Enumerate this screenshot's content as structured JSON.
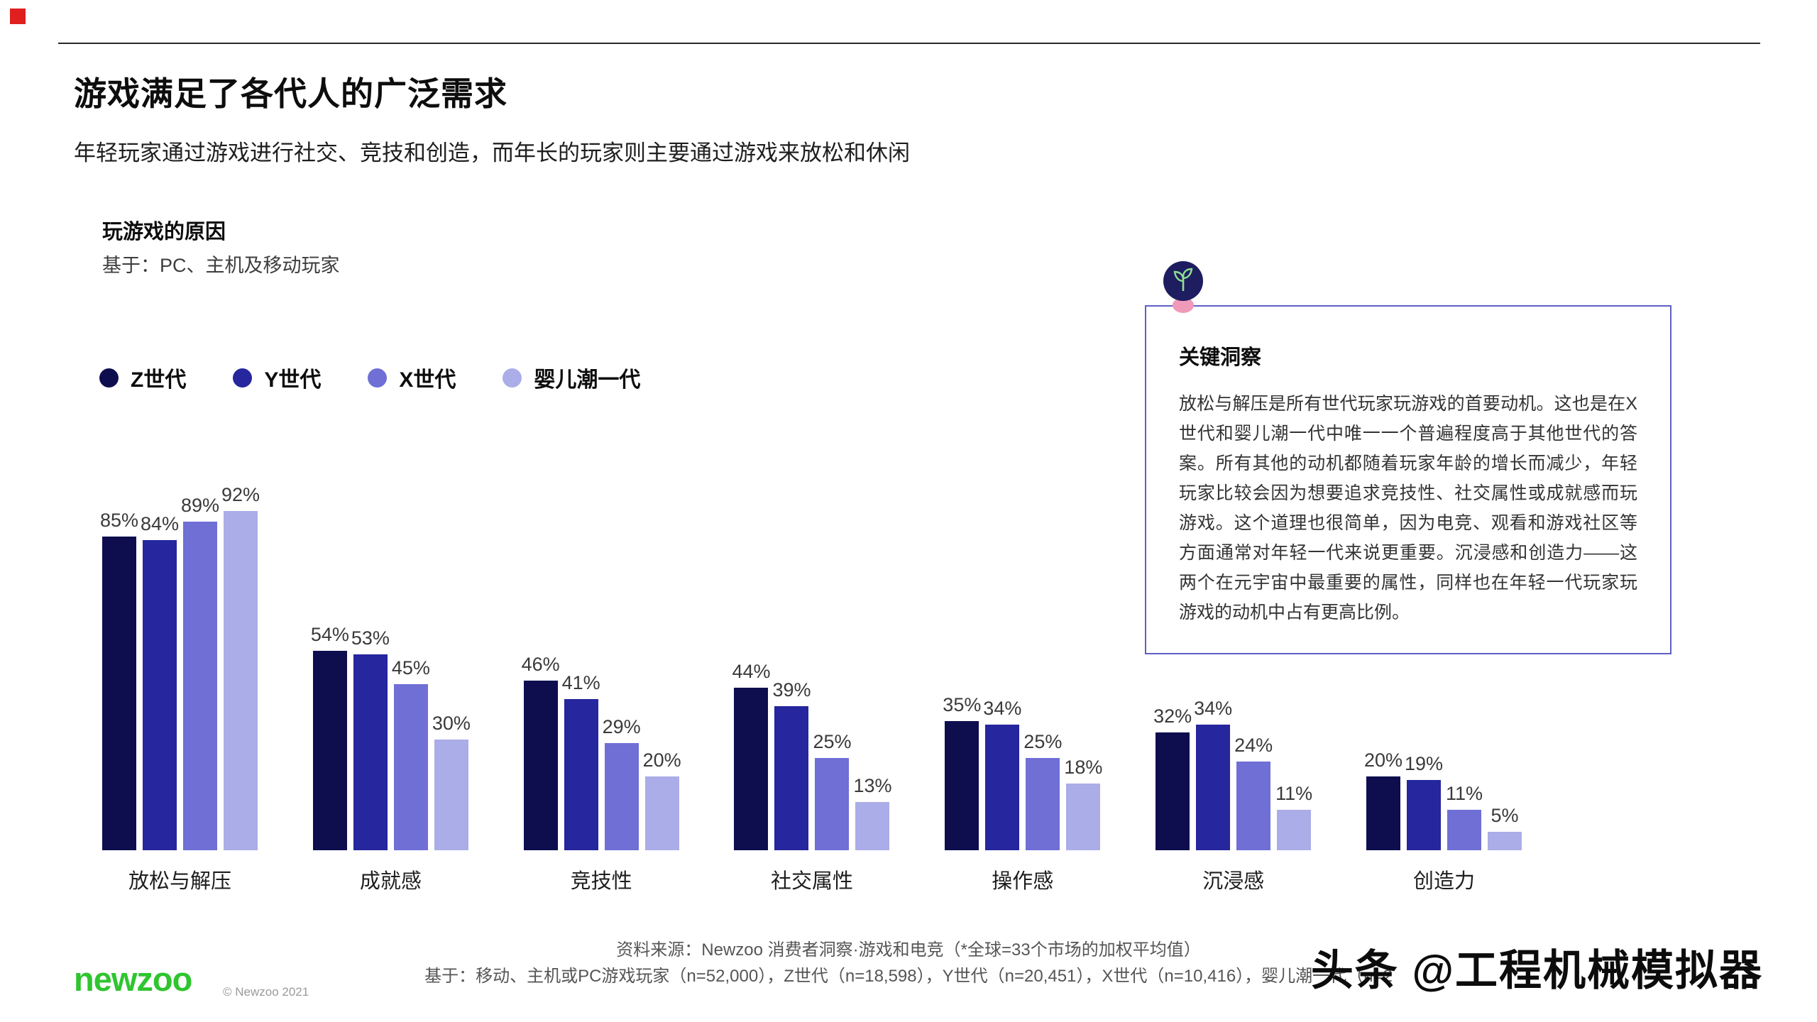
{
  "slide": {
    "title": "游戏满足了各代人的广泛需求",
    "subtitle": "年轻玩家通过游戏进行社交、竞技和创造，而年长的玩家则主要通过游戏来放松和休闲"
  },
  "chart": {
    "title": "玩游戏的原因",
    "basis": "基于：PC、主机及移动玩家"
  },
  "chart_data": {
    "type": "bar",
    "title": "玩游戏的原因",
    "subtitle": "基于：PC、主机及移动玩家",
    "categories": [
      "放松与解压",
      "成就感",
      "竞技性",
      "社交属性",
      "操作感",
      "沉浸感",
      "创造力"
    ],
    "series": [
      {
        "name": "Z世代",
        "color": "#0e0e4f",
        "values": [
          85,
          54,
          46,
          44,
          35,
          32,
          20
        ]
      },
      {
        "name": "Y世代",
        "color": "#26269e",
        "values": [
          84,
          53,
          41,
          39,
          34,
          34,
          19
        ]
      },
      {
        "name": "X世代",
        "color": "#6f6fd6",
        "values": [
          89,
          45,
          29,
          25,
          25,
          24,
          11
        ]
      },
      {
        "name": "婴儿潮一代",
        "color": "#abade8",
        "values": [
          92,
          30,
          20,
          13,
          18,
          11,
          5
        ]
      }
    ],
    "value_suffix": "%",
    "ylim": [
      0,
      100
    ],
    "grid": false,
    "legend_position": "top-left",
    "value_labels": true
  },
  "insight": {
    "icon": "lightbulb-icon",
    "title": "关键洞察",
    "body": "放松与解压是所有世代玩家玩游戏的首要动机。这也是在X世代和婴儿潮一代中唯一一个普遍程度高于其他世代的答案。所有其他的动机都随着玩家年龄的增长而减少，年轻玩家比较会因为想要追求竞技性、社交属性或成就感而玩游戏。这个道理也很简单，因为电竞、观看和游戏社区等方面通常对年轻一代来说更重要。沉浸感和创造力——这两个在元宇宙中最重要的属性，同样也在年轻一代玩家玩游戏的动机中占有更高比例。",
    "border_color": "#5f5fc4"
  },
  "footer": {
    "source": "资料来源：Newzoo 消费者洞察·游戏和电竞（*全球=33个市场的加权平均值）",
    "basis": "基于：移动、主机或PC游戏玩家（n=52,000），Z世代（n=18,598），Y世代（n=20,451），X世代（n=10,416），婴儿潮一代（n=2",
    "logo_text": "newzoo",
    "logo_color": "#2fc52f",
    "copyright": "© Newzoo 2021"
  },
  "watermark": "头条 @工程机械模拟器"
}
